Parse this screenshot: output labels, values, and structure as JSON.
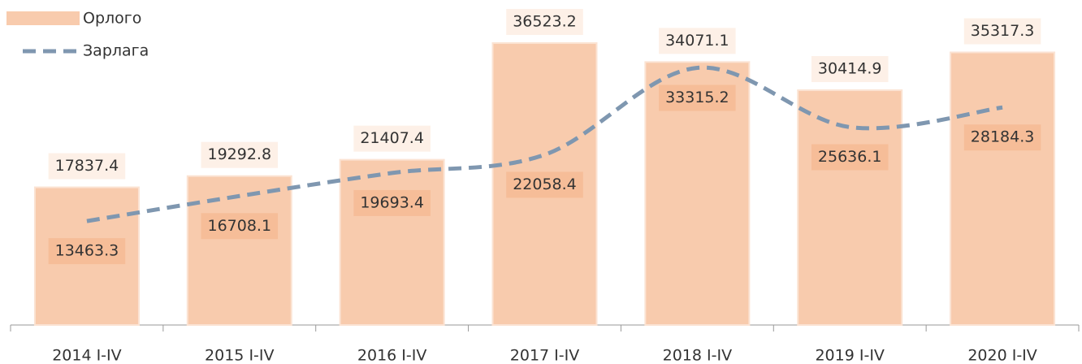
{
  "chart_data": {
    "type": "bar-line",
    "categories": [
      "2014 I-IV",
      "2015 I-IV",
      "2016 I-IV",
      "2017 I-IV",
      "2018 I-IV",
      "2019 I-IV",
      "2020 I-IV"
    ],
    "series": [
      {
        "name": "Орлого",
        "type": "bar",
        "color": "#f8cbad",
        "values": [
          17837.4,
          19292.8,
          21407.4,
          36523.2,
          34071.1,
          30414.9,
          35317.3
        ]
      },
      {
        "name": "Зарлага",
        "type": "line",
        "color": "#7f97b0",
        "values": [
          13463.3,
          16708.1,
          19693.4,
          22058.4,
          33315.2,
          25636.1,
          28184.3
        ]
      }
    ],
    "ylim": [
      0,
      40000
    ],
    "legend": "top-left"
  }
}
